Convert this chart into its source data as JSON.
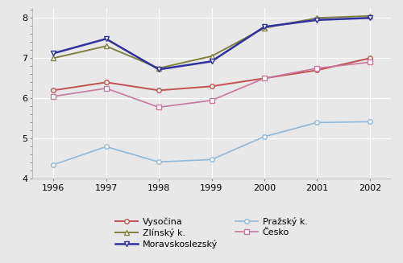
{
  "years": [
    1996,
    1997,
    1998,
    1999,
    2000,
    2001,
    2002
  ],
  "series_order": [
    "Vysočina",
    "Zlínský k.",
    "Moravskoslezský",
    "Pražský k.",
    "Česko"
  ],
  "series": {
    "Vysočina": {
      "values": [
        6.2,
        6.4,
        6.2,
        6.3,
        6.5,
        6.7,
        7.0
      ],
      "color": "#c05050",
      "marker": "o",
      "linewidth": 1.4
    },
    "Zlínský k.": {
      "values": [
        7.0,
        7.3,
        6.75,
        7.05,
        7.75,
        8.0,
        8.05
      ],
      "color": "#808040",
      "marker": "^",
      "linewidth": 1.4
    },
    "Moravskoslezský": {
      "values": [
        7.12,
        7.48,
        6.72,
        6.92,
        7.78,
        7.95,
        8.0
      ],
      "color": "#3030a0",
      "marker": "v",
      "linewidth": 1.8
    },
    "Pražský k.": {
      "values": [
        4.35,
        4.8,
        4.42,
        4.48,
        5.05,
        5.4,
        5.42
      ],
      "color": "#90b8d8",
      "marker": "o",
      "linewidth": 1.2
    },
    "Česko": {
      "values": [
        6.05,
        6.25,
        5.78,
        5.95,
        6.5,
        6.75,
        6.9
      ],
      "color": "#c878a0",
      "marker": "s",
      "linewidth": 1.2
    }
  },
  "ylim": [
    4.0,
    8.25
  ],
  "yticks": [
    4,
    5,
    6,
    7,
    8
  ],
  "xlim": [
    1995.6,
    2002.4
  ],
  "xticks": [
    1996,
    1997,
    1998,
    1999,
    2000,
    2001,
    2002
  ],
  "background_color": "#e8e8e8",
  "grid_color": "#ffffff",
  "marker_size": 4,
  "tick_fontsize": 8,
  "legend_fontsize": 8
}
